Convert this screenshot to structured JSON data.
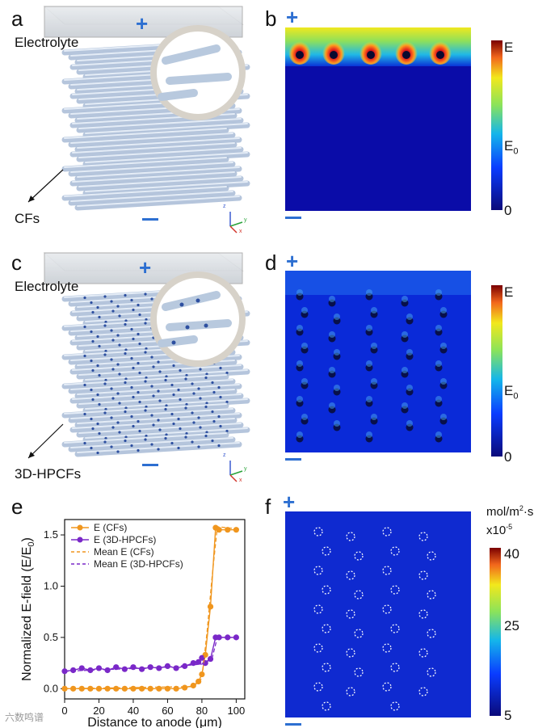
{
  "panels": {
    "a": {
      "letter": "a",
      "electrolyte": "Electrolyte",
      "pointer_label": "CFs",
      "plus": "+",
      "axes": {
        "z": "z",
        "y": "y",
        "x": "x"
      }
    },
    "b": {
      "letter": "b",
      "plus": "+",
      "cbar": {
        "top": "E",
        "mid_base": "E",
        "mid_sub": "0",
        "bottom": "0"
      }
    },
    "c": {
      "letter": "c",
      "electrolyte": "Electrolyte",
      "pointer_label": "3D-HPCFs",
      "plus": "+",
      "axes": {
        "z": "z",
        "y": "y",
        "x": "x"
      }
    },
    "d": {
      "letter": "d",
      "plus": "+",
      "cbar": {
        "top": "E",
        "mid_base": "E",
        "mid_sub": "0",
        "bottom": "0"
      }
    },
    "e": {
      "letter": "e"
    },
    "f": {
      "letter": "f",
      "plus": "+",
      "cbar": {
        "unit_line1_pre": "mol/m",
        "unit_line1_sup": "2",
        "unit_line1_post": "·s",
        "unit_line2_pre": "x10",
        "unit_line2_sup": "-5",
        "ticks": [
          "40",
          "25",
          "5"
        ]
      }
    }
  },
  "watermark": "六数鸣谱",
  "colors": {
    "accent": "#2d6fd1",
    "cfs": "#f0961e",
    "hpcfs": "#7a28c8"
  },
  "chart_data": {
    "type": "line",
    "xlabel": "Distance to anode (μm)",
    "ylabel_base": "Normalized E-field (E/E",
    "ylabel_sub": "0",
    "ylabel_end": ")",
    "xlim": [
      0,
      105
    ],
    "ylim": [
      -0.1,
      1.65
    ],
    "xticks": [
      0,
      20,
      40,
      60,
      80,
      100
    ],
    "yticks": [
      0.0,
      0.5,
      1.0,
      1.5
    ],
    "ytick_labels": [
      "0.0",
      "0.5",
      "1.0",
      "1.5"
    ],
    "series": [
      {
        "name": "E (CFs)",
        "style": "solid-marker",
        "color": "#f0961e",
        "x": [
          0,
          5,
          10,
          15,
          20,
          25,
          30,
          35,
          40,
          45,
          50,
          55,
          60,
          65,
          70,
          75,
          78,
          80,
          82,
          85,
          88,
          90,
          95,
          100
        ],
        "y": [
          0,
          0,
          0,
          0,
          0,
          0,
          0,
          0,
          0,
          0,
          0,
          0,
          0,
          0,
          0.01,
          0.03,
          0.07,
          0.14,
          0.33,
          0.8,
          1.57,
          1.55,
          1.55,
          1.55
        ]
      },
      {
        "name": "E (3D-HPCFs)",
        "style": "solid-marker",
        "color": "#7a28c8",
        "x": [
          0,
          5,
          10,
          15,
          20,
          25,
          30,
          35,
          40,
          45,
          50,
          55,
          60,
          65,
          70,
          75,
          78,
          80,
          82,
          85,
          88,
          90,
          95,
          100
        ],
        "y": [
          0.17,
          0.18,
          0.2,
          0.18,
          0.2,
          0.18,
          0.21,
          0.19,
          0.21,
          0.19,
          0.21,
          0.2,
          0.22,
          0.2,
          0.22,
          0.25,
          0.26,
          0.3,
          0.25,
          0.29,
          0.5,
          0.5,
          0.5,
          0.5
        ]
      },
      {
        "name": "Mean E (CFs)",
        "style": "dashed",
        "color": "#f0961e",
        "x": [
          0,
          75,
          80,
          83,
          86,
          89,
          100
        ],
        "y": [
          0,
          0.02,
          0.1,
          0.55,
          1.1,
          1.58,
          1.56
        ]
      },
      {
        "name": "Mean E (3D-HPCFs)",
        "style": "dashed",
        "color": "#7a28c8",
        "x": [
          0,
          30,
          60,
          80,
          86,
          89,
          100
        ],
        "y": [
          0.17,
          0.19,
          0.21,
          0.24,
          0.3,
          0.5,
          0.5
        ]
      }
    ]
  }
}
